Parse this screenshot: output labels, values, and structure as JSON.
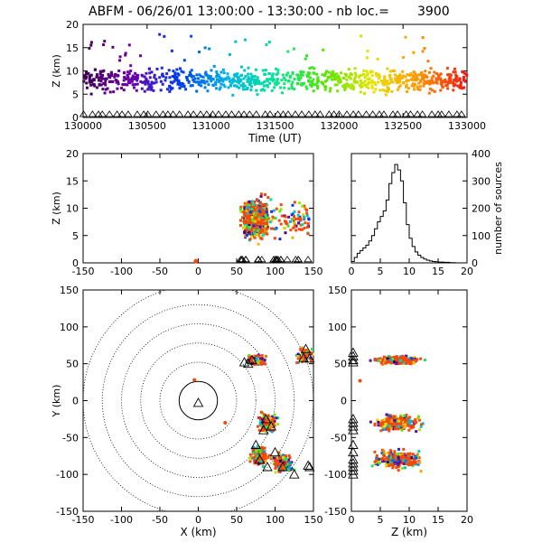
{
  "title": "ABFM - 06/26/01 13:00:00 - 13:30:00 - nb loc.=",
  "nb_loc": "3900",
  "chart_data": [
    {
      "id": "time_height",
      "type": "scatter",
      "xlabel": "Time (UT)",
      "ylabel": "Z (km)",
      "xlim": [
        130000,
        133000
      ],
      "ylim": [
        0,
        20
      ],
      "xticks": [
        "130000",
        "130500",
        "131000",
        "131500",
        "132000",
        "132500",
        "133000"
      ],
      "yticks": [
        "0",
        "5",
        "10",
        "15",
        "20"
      ],
      "z_band_center_km": 8,
      "z_spread_km": 3,
      "color_encoding": "time (rainbow: purple to red)",
      "point_count": 3900
    },
    {
      "id": "x_z",
      "type": "scatter",
      "xlabel": "",
      "ylabel": "Z (km)",
      "xlim": [
        -150,
        150
      ],
      "ylim": [
        0,
        20
      ],
      "xticks": [
        "-150",
        "-100",
        "-50",
        "0",
        "50",
        "100",
        "150"
      ],
      "yticks": [
        "0",
        "5",
        "10",
        "15",
        "20"
      ],
      "x_range_km": [
        55,
        145
      ],
      "main_cluster_x_km": [
        60,
        90
      ]
    },
    {
      "id": "height_histogram",
      "type": "line",
      "xlabel": "",
      "ylabel": "number of sources",
      "xlim": [
        0,
        20
      ],
      "ylim": [
        0,
        400
      ],
      "xticks": [
        "0",
        "5",
        "10",
        "15",
        "20"
      ],
      "yticks": [
        "0",
        "100",
        "200",
        "300",
        "400"
      ],
      "x": [
        0.5,
        1,
        1.5,
        2,
        2.5,
        3,
        3.5,
        4,
        4.5,
        5,
        5.5,
        6,
        6.5,
        7,
        7.5,
        8,
        8.5,
        9,
        9.5,
        10,
        10.5,
        11,
        11.5,
        12,
        12.5,
        13,
        13.5,
        14,
        14.5,
        15,
        16,
        17,
        18,
        20
      ],
      "y": [
        5,
        20,
        35,
        45,
        55,
        65,
        80,
        100,
        125,
        150,
        170,
        190,
        230,
        290,
        330,
        360,
        340,
        300,
        220,
        140,
        90,
        60,
        40,
        28,
        20,
        14,
        10,
        7,
        5,
        4,
        3,
        2,
        1,
        0
      ]
    },
    {
      "id": "plan_view",
      "type": "scatter",
      "xlabel": "X (km)",
      "ylabel": "Y (km)",
      "xlim": [
        -150,
        150
      ],
      "ylim": [
        -150,
        150
      ],
      "xticks": [
        "-150",
        "-100",
        "-50",
        "0",
        "50",
        "100",
        "150"
      ],
      "yticks": [
        "-150",
        "-100",
        "-50",
        "0",
        "50",
        "100",
        "150"
      ],
      "range_rings_km": [
        25,
        50,
        75,
        100,
        125,
        150
      ],
      "clusters": [
        {
          "x": 75,
          "y": 55
        },
        {
          "x": 140,
          "y": 60
        },
        {
          "x": 90,
          "y": -30
        },
        {
          "x": 80,
          "y": -75
        },
        {
          "x": 110,
          "y": -85
        }
      ],
      "stations": [
        [
          60,
          52
        ],
        [
          65,
          50
        ],
        [
          70,
          55
        ],
        [
          140,
          70
        ],
        [
          137,
          58
        ],
        [
          145,
          57
        ],
        [
          88,
          -25
        ],
        [
          95,
          -35
        ],
        [
          85,
          -40
        ],
        [
          75,
          -60
        ],
        [
          80,
          -80
        ],
        [
          90,
          -90
        ],
        [
          100,
          -70
        ],
        [
          110,
          -90
        ],
        [
          125,
          -100
        ],
        [
          145,
          -90
        ],
        [
          143,
          -88
        ],
        [
          0,
          -3
        ]
      ]
    },
    {
      "id": "z_y",
      "type": "scatter",
      "xlabel": "Z (km)",
      "ylabel": "",
      "xlim": [
        0,
        20
      ],
      "ylim": [
        -150,
        150
      ],
      "xticks": [
        "0",
        "5",
        "10",
        "15",
        "20"
      ],
      "yticks": [
        "-150",
        "-100",
        "-50",
        "0",
        "50",
        "100",
        "150"
      ],
      "bands_y_km": [
        55,
        -30,
        -80
      ]
    }
  ]
}
